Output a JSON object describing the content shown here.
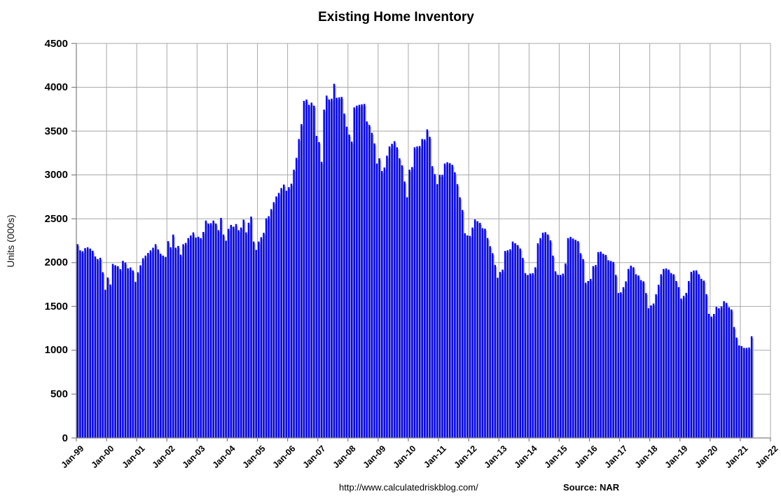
{
  "title": "Existing Home Inventory",
  "y_axis": {
    "title": "Units (000s)",
    "tick_labels": [
      "0",
      "500",
      "1000",
      "1500",
      "2000",
      "2500",
      "3000",
      "3500",
      "4000",
      "4500"
    ],
    "tick_values": [
      0,
      500,
      1000,
      1500,
      2000,
      2500,
      3000,
      3500,
      4000,
      4500
    ]
  },
  "x_axis": {
    "labels": [
      "Jan-99",
      "Jan-00",
      "Jan-01",
      "Jan-02",
      "Jan-03",
      "Jan-04",
      "Jan-05",
      "Jan-06",
      "Jan-07",
      "Jan-08",
      "Jan-09",
      "Jan-10",
      "Jan-11",
      "Jan-12",
      "Jan-13",
      "Jan-14",
      "Jan-15",
      "Jan-16",
      "Jan-17",
      "Jan-18",
      "Jan-19",
      "Jan-20",
      "Jan-21",
      "Jan-22"
    ]
  },
  "footer": {
    "url": "http://www.calculatedriskblog.com/",
    "source": "Source: NAR"
  },
  "colors": {
    "bar": "#0101fa",
    "bar_shadow": "#bdbdbd",
    "gridline": "#a8a8a8",
    "axis": "#808080",
    "text": "#000000",
    "background": "#ffffff"
  },
  "chart_data": {
    "type": "bar",
    "title": "Existing Home Inventory",
    "xlabel": "",
    "ylabel": "Units (000s)",
    "ylim": [
      0,
      4500
    ],
    "grid": true,
    "frequency": "monthly",
    "x_start": "Jan-1999",
    "x_end": "May-2021",
    "x_axis_extends_to": "Jan-2022",
    "series": [
      {
        "name": "Existing Home Inventory (thousands of units)",
        "values": [
          2210,
          2140,
          2130,
          2165,
          2175,
          2160,
          2135,
          2070,
          2040,
          2055,
          1890,
          1690,
          1830,
          1750,
          1985,
          1970,
          1960,
          1925,
          2020,
          2000,
          1935,
          1945,
          1910,
          1780,
          1890,
          1970,
          2050,
          2080,
          2110,
          2140,
          2170,
          2210,
          2150,
          2100,
          2080,
          2065,
          2245,
          2175,
          2320,
          2170,
          2190,
          2090,
          2210,
          2225,
          2280,
          2310,
          2345,
          2285,
          2295,
          2280,
          2350,
          2480,
          2445,
          2450,
          2480,
          2445,
          2370,
          2510,
          2320,
          2250,
          2385,
          2430,
          2410,
          2440,
          2370,
          2400,
          2490,
          2345,
          2455,
          2525,
          2240,
          2145,
          2240,
          2290,
          2340,
          2505,
          2530,
          2610,
          2690,
          2755,
          2795,
          2850,
          2890,
          2820,
          2860,
          2900,
          3060,
          3195,
          3410,
          3580,
          3845,
          3860,
          3800,
          3825,
          3790,
          3445,
          3375,
          3150,
          3745,
          3905,
          3860,
          3870,
          4040,
          3880,
          3885,
          3890,
          3700,
          3550,
          3460,
          3380,
          3770,
          3790,
          3800,
          3805,
          3810,
          3610,
          3570,
          3480,
          3360,
          3130,
          3190,
          3045,
          3085,
          3220,
          3325,
          3355,
          3385,
          3315,
          3190,
          3110,
          2925,
          2745,
          3060,
          3090,
          3315,
          3325,
          3330,
          3410,
          3405,
          3520,
          3435,
          3100,
          3010,
          2895,
          3000,
          3000,
          3130,
          3145,
          3135,
          3115,
          3030,
          2895,
          2745,
          2600,
          2335,
          2310,
          2305,
          2400,
          2493,
          2472,
          2453,
          2392,
          2387,
          2280,
          2187,
          2107,
          1973,
          1827,
          1893,
          1920,
          2133,
          2141,
          2152,
          2240,
          2221,
          2200,
          2160,
          2053,
          1880,
          1859,
          1875,
          1880,
          1947,
          2221,
          2280,
          2341,
          2347,
          2320,
          2253,
          2080,
          1900,
          1860,
          1860,
          1875,
          1990,
          2280,
          2293,
          2275,
          2260,
          2245,
          2107,
          2040,
          1770,
          1790,
          1813,
          1960,
          1973,
          2120,
          2125,
          2100,
          2088,
          2027,
          2019,
          2008,
          1860,
          1653,
          1661,
          1720,
          1787,
          1928,
          1965,
          1947,
          1867,
          1853,
          1800,
          1787,
          1653,
          1480,
          1512,
          1533,
          1640,
          1747,
          1867,
          1928,
          1933,
          1920,
          1880,
          1867,
          1790,
          1720,
          1590,
          1620,
          1655,
          1790,
          1895,
          1910,
          1912,
          1867,
          1815,
          1795,
          1640,
          1415,
          1385,
          1415,
          1495,
          1480,
          1500,
          1560,
          1540,
          1490,
          1465,
          1265,
          1145,
          1055,
          1048,
          1027,
          1027,
          1032,
          1160
        ]
      }
    ]
  }
}
